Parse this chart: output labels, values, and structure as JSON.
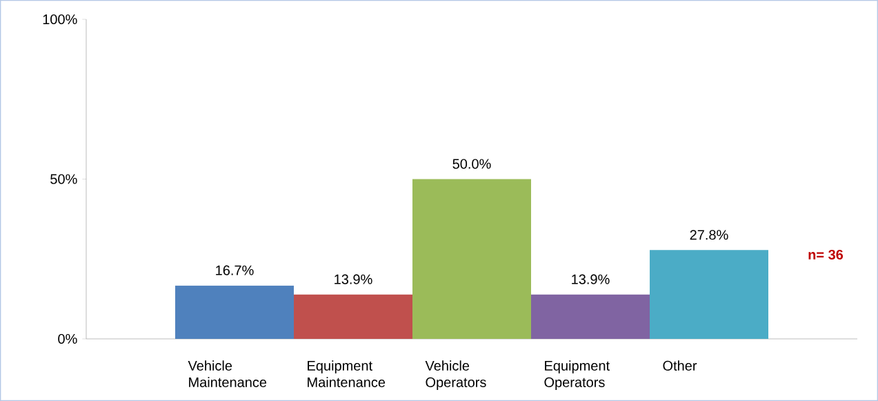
{
  "chart_data": {
    "type": "bar",
    "categories": [
      "Vehicle Maintenance",
      "Equipment Maintenance",
      "Vehicle Operators",
      "Equipment Operators",
      "Other"
    ],
    "values": [
      16.7,
      13.9,
      50.0,
      13.9,
      27.8
    ],
    "colors": [
      "#4f81bd",
      "#c0504d",
      "#9bbb59",
      "#8064a2",
      "#4bacc6"
    ],
    "value_labels": [
      "16.7%",
      "13.9%",
      "50.0%",
      "13.9%",
      "27.8%"
    ],
    "ylim": [
      0,
      100
    ],
    "yticks": [
      {
        "value": 0,
        "label": "0%"
      },
      {
        "value": 50,
        "label": "50%"
      },
      {
        "value": 100,
        "label": "100%"
      }
    ],
    "annotations": [
      "n= 36"
    ]
  }
}
